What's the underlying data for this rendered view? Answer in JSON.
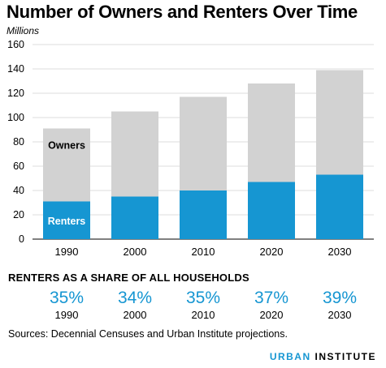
{
  "chart_data": {
    "type": "bar",
    "stacked": true,
    "title": "Number of Owners and Renters Over Time",
    "ylabel": "Millions",
    "xlabel": "",
    "categories": [
      "1990",
      "2000",
      "2010",
      "2020",
      "2030"
    ],
    "ylim": [
      0,
      160
    ],
    "yticks": [
      0,
      20,
      40,
      60,
      80,
      100,
      120,
      140,
      160
    ],
    "grid": true,
    "series": [
      {
        "name": "Renters",
        "values": [
          31,
          35,
          40,
          47,
          53
        ],
        "color": "#1696d2"
      },
      {
        "name": "Owners",
        "values": [
          60,
          70,
          77,
          81,
          86
        ],
        "color": "#d2d2d2"
      }
    ]
  },
  "share_section": {
    "title": "RENTERS AS A SHARE OF ALL HOUSEHOLDS",
    "items": [
      {
        "pct": "35%",
        "year": "1990"
      },
      {
        "pct": "34%",
        "year": "2000"
      },
      {
        "pct": "35%",
        "year": "2010"
      },
      {
        "pct": "37%",
        "year": "2020"
      },
      {
        "pct": "39%",
        "year": "2030"
      }
    ]
  },
  "sources": "Sources: Decennial Censuses and Urban Institute projections.",
  "brand": {
    "part1": "URBAN",
    "part2": "INSTITUTE"
  }
}
